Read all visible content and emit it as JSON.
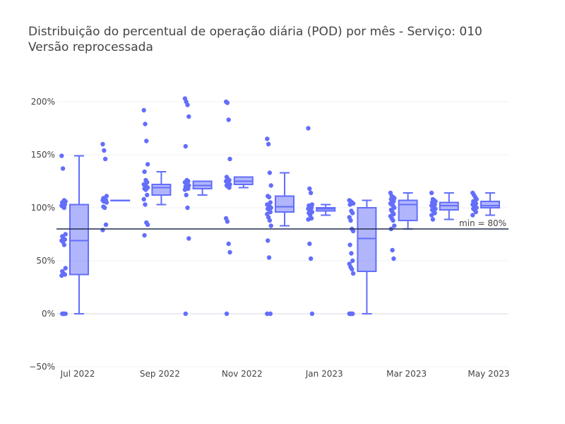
{
  "chart_data": {
    "type": "box",
    "title": "Distribuição do percentual de operação diária (POD) por mês - Serviço: 010\nVersão reprocessada",
    "xlabel": "",
    "ylabel": "",
    "y_unit": "%",
    "ylim": [
      -50,
      225
    ],
    "y_ticks": [
      -50,
      0,
      50,
      100,
      150,
      200
    ],
    "y_tick_labels": [
      "−50%",
      "0%",
      "50%",
      "100%",
      "150%",
      "200%"
    ],
    "x_tick_labels": [
      "Jul 2022",
      "Sep 2022",
      "Nov 2022",
      "Jan 2023",
      "Mar 2023",
      "May 2023"
    ],
    "x_ticks": [
      "2022-07",
      "2022-09",
      "2022-11",
      "2023-01",
      "2023-03",
      "2023-05"
    ],
    "reference_line": {
      "y": 80,
      "label": "min = 80%"
    },
    "grid": true,
    "color": "#636efa",
    "line_color": "#1f2d4e",
    "months": [
      {
        "month": "2022-07",
        "q1": 37,
        "median": 69,
        "q3": 103,
        "whisker_low": 0,
        "whisker_high": 149,
        "points": [
          149,
          137,
          107,
          106,
          105,
          104,
          103,
          102,
          101,
          100,
          75,
          73,
          71,
          70,
          69,
          68,
          65,
          43,
          40,
          38,
          37,
          36,
          0,
          0,
          0,
          0,
          0
        ]
      },
      {
        "month": "2022-08",
        "q1": 107,
        "median": 107,
        "q3": 107,
        "whisker_low": 107,
        "whisker_high": 107,
        "points": [
          160,
          154,
          146,
          111,
          109,
          108,
          107,
          107,
          106,
          106,
          105,
          101,
          100,
          84,
          79
        ]
      },
      {
        "month": "2022-09",
        "q1": 112,
        "median": 119,
        "q3": 122,
        "whisker_low": 103,
        "whisker_high": 134,
        "points": [
          192,
          179,
          163,
          141,
          134,
          126,
          124,
          122,
          121,
          120,
          119,
          118,
          117,
          112,
          108,
          103,
          86,
          84,
          74
        ]
      },
      {
        "month": "2022-10",
        "q1": 118,
        "median": 121,
        "q3": 125,
        "whisker_low": 112,
        "whisker_high": 125,
        "points": [
          203,
          200,
          197,
          186,
          158,
          126,
          125,
          124,
          123,
          122,
          121,
          120,
          119,
          118,
          117,
          112,
          100,
          71,
          0
        ]
      },
      {
        "month": "2022-11",
        "q1": 122,
        "median": 125,
        "q3": 129,
        "whisker_low": 119,
        "whisker_high": 129,
        "points": [
          200,
          199,
          183,
          146,
          129,
          127,
          126,
          125,
          124,
          123,
          122,
          121,
          120,
          119,
          90,
          87,
          66,
          58,
          0
        ]
      },
      {
        "month": "2022-12",
        "q1": 96,
        "median": 101,
        "q3": 111,
        "whisker_low": 83,
        "whisker_high": 133,
        "points": [
          165,
          160,
          133,
          121,
          111,
          110,
          105,
          103,
          102,
          101,
          100,
          99,
          98,
          96,
          94,
          91,
          88,
          83,
          69,
          53,
          0,
          0
        ]
      },
      {
        "month": "2023-01",
        "q1": 97,
        "median": 99,
        "q3": 100,
        "whisker_low": 93,
        "whisker_high": 103,
        "points": [
          175,
          118,
          114,
          103,
          102,
          101,
          100,
          99,
          98,
          97,
          96,
          95,
          93,
          90,
          89,
          66,
          52,
          0
        ]
      },
      {
        "month": "2023-02",
        "q1": 40,
        "median": 71,
        "q3": 100,
        "whisker_low": 0,
        "whisker_high": 107,
        "points": [
          107,
          106,
          105,
          104,
          103,
          97,
          95,
          91,
          88,
          80,
          78,
          65,
          57,
          50,
          47,
          44,
          42,
          38,
          0,
          0,
          0,
          0,
          0
        ]
      },
      {
        "month": "2023-03",
        "q1": 88,
        "median": 103,
        "q3": 107,
        "whisker_low": 80,
        "whisker_high": 114,
        "points": [
          114,
          111,
          110,
          109,
          108,
          107,
          106,
          104,
          103,
          102,
          100,
          98,
          96,
          94,
          92,
          90,
          88,
          83,
          80,
          60,
          52
        ]
      },
      {
        "month": "2023-04",
        "q1": 98,
        "median": 102,
        "q3": 105,
        "whisker_low": 89,
        "whisker_high": 114,
        "points": [
          114,
          108,
          107,
          106,
          105,
          104,
          103,
          102,
          101,
          100,
          99,
          98,
          97,
          95,
          93,
          89
        ]
      },
      {
        "month": "2023-05",
        "q1": 100,
        "median": 102,
        "q3": 106,
        "whisker_low": 93,
        "whisker_high": 114,
        "points": [
          114,
          112,
          110,
          108,
          106,
          105,
          104,
          103,
          102,
          101,
          100,
          99,
          98,
          96,
          93
        ]
      }
    ]
  }
}
